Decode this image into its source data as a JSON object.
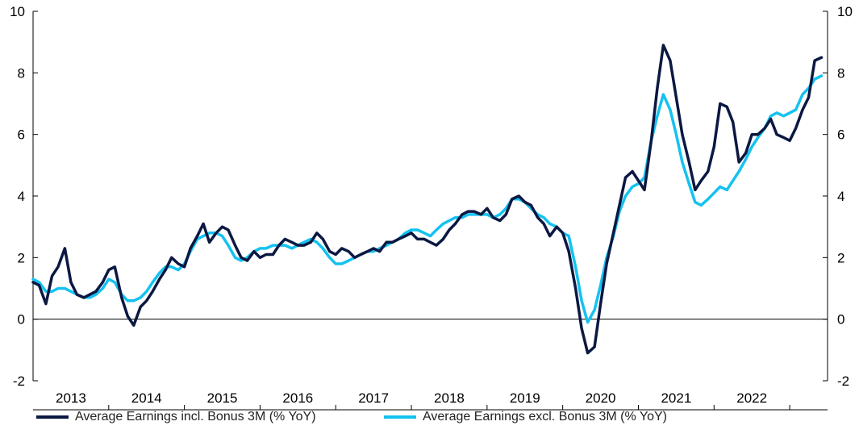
{
  "chart_data": {
    "type": "line",
    "title": "",
    "xlabel": "",
    "ylabel": "",
    "ylim": [
      -2,
      10
    ],
    "y_ticks": [
      -2,
      0,
      2,
      4,
      6,
      8,
      10
    ],
    "y_tick_labels": [
      "-2",
      "0",
      "2",
      "4",
      "6",
      "8",
      "10"
    ],
    "x_range": [
      2012.5,
      2023.0
    ],
    "year_labels": [
      {
        "year": 2013,
        "label": "2013"
      },
      {
        "year": 2014,
        "label": "2014"
      },
      {
        "year": 2015,
        "label": "2015"
      },
      {
        "year": 2016,
        "label": "2016"
      },
      {
        "year": 2017,
        "label": "2017"
      },
      {
        "year": 2018,
        "label": "2018"
      },
      {
        "year": 2019,
        "label": "2019"
      },
      {
        "year": 2020,
        "label": "2020"
      },
      {
        "year": 2021,
        "label": "2021"
      },
      {
        "year": 2022,
        "label": "2022"
      }
    ],
    "legend_position": "bottom",
    "grid": false,
    "series": [
      {
        "name": "Average Earnings incl. Bonus 3M (% YoY)",
        "color": "#0b1842",
        "points": [
          [
            2012.5,
            1.2
          ],
          [
            2012.58,
            1.1
          ],
          [
            2012.67,
            0.5
          ],
          [
            2012.75,
            1.4
          ],
          [
            2012.83,
            1.7
          ],
          [
            2012.92,
            2.3
          ],
          [
            2013.0,
            1.2
          ],
          [
            2013.08,
            0.8
          ],
          [
            2013.17,
            0.7
          ],
          [
            2013.25,
            0.8
          ],
          [
            2013.33,
            0.9
          ],
          [
            2013.42,
            1.2
          ],
          [
            2013.5,
            1.6
          ],
          [
            2013.58,
            1.7
          ],
          [
            2013.67,
            0.7
          ],
          [
            2013.75,
            0.1
          ],
          [
            2013.83,
            -0.2
          ],
          [
            2013.92,
            0.4
          ],
          [
            2014.0,
            0.6
          ],
          [
            2014.08,
            0.9
          ],
          [
            2014.17,
            1.3
          ],
          [
            2014.25,
            1.6
          ],
          [
            2014.33,
            2.0
          ],
          [
            2014.42,
            1.8
          ],
          [
            2014.5,
            1.7
          ],
          [
            2014.58,
            2.3
          ],
          [
            2014.67,
            2.7
          ],
          [
            2014.75,
            3.1
          ],
          [
            2014.83,
            2.5
          ],
          [
            2014.92,
            2.8
          ],
          [
            2015.0,
            3.0
          ],
          [
            2015.08,
            2.9
          ],
          [
            2015.17,
            2.4
          ],
          [
            2015.25,
            2.0
          ],
          [
            2015.33,
            1.9
          ],
          [
            2015.42,
            2.2
          ],
          [
            2015.5,
            2.0
          ],
          [
            2015.58,
            2.1
          ],
          [
            2015.67,
            2.1
          ],
          [
            2015.75,
            2.4
          ],
          [
            2015.83,
            2.6
          ],
          [
            2015.92,
            2.5
          ],
          [
            2016.0,
            2.4
          ],
          [
            2016.08,
            2.4
          ],
          [
            2016.17,
            2.5
          ],
          [
            2016.25,
            2.8
          ],
          [
            2016.33,
            2.6
          ],
          [
            2016.42,
            2.2
          ],
          [
            2016.5,
            2.1
          ],
          [
            2016.58,
            2.3
          ],
          [
            2016.67,
            2.2
          ],
          [
            2016.75,
            2.0
          ],
          [
            2016.83,
            2.1
          ],
          [
            2016.92,
            2.2
          ],
          [
            2017.0,
            2.3
          ],
          [
            2017.08,
            2.2
          ],
          [
            2017.17,
            2.5
          ],
          [
            2017.25,
            2.5
          ],
          [
            2017.33,
            2.6
          ],
          [
            2017.42,
            2.7
          ],
          [
            2017.5,
            2.8
          ],
          [
            2017.58,
            2.6
          ],
          [
            2017.67,
            2.6
          ],
          [
            2017.75,
            2.5
          ],
          [
            2017.83,
            2.4
          ],
          [
            2017.92,
            2.6
          ],
          [
            2018.0,
            2.9
          ],
          [
            2018.08,
            3.1
          ],
          [
            2018.17,
            3.4
          ],
          [
            2018.25,
            3.5
          ],
          [
            2018.33,
            3.5
          ],
          [
            2018.42,
            3.4
          ],
          [
            2018.5,
            3.6
          ],
          [
            2018.58,
            3.3
          ],
          [
            2018.67,
            3.2
          ],
          [
            2018.75,
            3.4
          ],
          [
            2018.83,
            3.9
          ],
          [
            2018.92,
            4.0
          ],
          [
            2019.0,
            3.8
          ],
          [
            2019.08,
            3.7
          ],
          [
            2019.17,
            3.3
          ],
          [
            2019.25,
            3.1
          ],
          [
            2019.33,
            2.7
          ],
          [
            2019.42,
            3.0
          ],
          [
            2019.5,
            2.8
          ],
          [
            2019.58,
            2.2
          ],
          [
            2019.67,
            1.0
          ],
          [
            2019.75,
            -0.3
          ],
          [
            2019.83,
            -1.1
          ],
          [
            2019.92,
            -0.9
          ],
          [
            2020.0,
            0.5
          ],
          [
            2020.08,
            1.8
          ],
          [
            2020.17,
            2.8
          ],
          [
            2020.25,
            3.7
          ],
          [
            2020.33,
            4.6
          ],
          [
            2020.42,
            4.8
          ],
          [
            2020.5,
            4.5
          ],
          [
            2020.58,
            4.2
          ],
          [
            2020.67,
            5.8
          ],
          [
            2020.75,
            7.5
          ],
          [
            2020.83,
            8.9
          ],
          [
            2020.92,
            8.4
          ],
          [
            2021.0,
            7.2
          ],
          [
            2021.08,
            6.0
          ],
          [
            2021.17,
            5.1
          ],
          [
            2021.25,
            4.2
          ],
          [
            2021.33,
            4.5
          ],
          [
            2021.42,
            4.8
          ],
          [
            2021.5,
            5.6
          ],
          [
            2021.58,
            7.0
          ],
          [
            2021.67,
            6.9
          ],
          [
            2021.75,
            6.4
          ],
          [
            2021.83,
            5.1
          ],
          [
            2021.92,
            5.4
          ],
          [
            2022.0,
            6.0
          ],
          [
            2022.08,
            6.0
          ],
          [
            2022.17,
            6.2
          ],
          [
            2022.25,
            6.5
          ],
          [
            2022.33,
            6.0
          ],
          [
            2022.42,
            5.9
          ],
          [
            2022.5,
            5.8
          ],
          [
            2022.58,
            6.2
          ],
          [
            2022.67,
            6.8
          ],
          [
            2022.75,
            7.2
          ],
          [
            2022.83,
            8.4
          ],
          [
            2022.92,
            8.5
          ]
        ]
      },
      {
        "name": "Average Earnings excl. Bonus 3M (% YoY)",
        "color": "#14c2f0",
        "points": [
          [
            2012.5,
            1.3
          ],
          [
            2012.58,
            1.2
          ],
          [
            2012.67,
            0.9
          ],
          [
            2012.75,
            0.9
          ],
          [
            2012.83,
            1.0
          ],
          [
            2012.92,
            1.0
          ],
          [
            2013.0,
            0.9
          ],
          [
            2013.08,
            0.8
          ],
          [
            2013.17,
            0.7
          ],
          [
            2013.25,
            0.7
          ],
          [
            2013.33,
            0.8
          ],
          [
            2013.42,
            1.0
          ],
          [
            2013.5,
            1.3
          ],
          [
            2013.58,
            1.2
          ],
          [
            2013.67,
            0.8
          ],
          [
            2013.75,
            0.6
          ],
          [
            2013.83,
            0.6
          ],
          [
            2013.92,
            0.7
          ],
          [
            2014.0,
            0.9
          ],
          [
            2014.08,
            1.2
          ],
          [
            2014.17,
            1.5
          ],
          [
            2014.25,
            1.7
          ],
          [
            2014.33,
            1.7
          ],
          [
            2014.42,
            1.6
          ],
          [
            2014.5,
            1.8
          ],
          [
            2014.58,
            2.2
          ],
          [
            2014.67,
            2.6
          ],
          [
            2014.75,
            2.7
          ],
          [
            2014.83,
            2.8
          ],
          [
            2014.92,
            2.8
          ],
          [
            2015.0,
            2.7
          ],
          [
            2015.08,
            2.4
          ],
          [
            2015.17,
            2.0
          ],
          [
            2015.25,
            1.9
          ],
          [
            2015.33,
            2.0
          ],
          [
            2015.42,
            2.2
          ],
          [
            2015.5,
            2.3
          ],
          [
            2015.58,
            2.3
          ],
          [
            2015.67,
            2.4
          ],
          [
            2015.75,
            2.4
          ],
          [
            2015.83,
            2.4
          ],
          [
            2015.92,
            2.3
          ],
          [
            2016.0,
            2.4
          ],
          [
            2016.08,
            2.5
          ],
          [
            2016.17,
            2.6
          ],
          [
            2016.25,
            2.5
          ],
          [
            2016.33,
            2.3
          ],
          [
            2016.42,
            2.0
          ],
          [
            2016.5,
            1.8
          ],
          [
            2016.58,
            1.8
          ],
          [
            2016.67,
            1.9
          ],
          [
            2016.75,
            2.0
          ],
          [
            2016.83,
            2.1
          ],
          [
            2016.92,
            2.2
          ],
          [
            2017.0,
            2.2
          ],
          [
            2017.08,
            2.3
          ],
          [
            2017.17,
            2.4
          ],
          [
            2017.25,
            2.5
          ],
          [
            2017.33,
            2.6
          ],
          [
            2017.42,
            2.8
          ],
          [
            2017.5,
            2.9
          ],
          [
            2017.58,
            2.9
          ],
          [
            2017.67,
            2.8
          ],
          [
            2017.75,
            2.7
          ],
          [
            2017.83,
            2.9
          ],
          [
            2017.92,
            3.1
          ],
          [
            2018.0,
            3.2
          ],
          [
            2018.08,
            3.3
          ],
          [
            2018.17,
            3.3
          ],
          [
            2018.25,
            3.4
          ],
          [
            2018.33,
            3.4
          ],
          [
            2018.42,
            3.4
          ],
          [
            2018.5,
            3.4
          ],
          [
            2018.58,
            3.3
          ],
          [
            2018.67,
            3.4
          ],
          [
            2018.75,
            3.6
          ],
          [
            2018.83,
            3.9
          ],
          [
            2018.92,
            3.9
          ],
          [
            2019.0,
            3.8
          ],
          [
            2019.08,
            3.6
          ],
          [
            2019.17,
            3.4
          ],
          [
            2019.25,
            3.3
          ],
          [
            2019.33,
            3.1
          ],
          [
            2019.42,
            3.0
          ],
          [
            2019.5,
            2.8
          ],
          [
            2019.58,
            2.7
          ],
          [
            2019.67,
            1.7
          ],
          [
            2019.75,
            0.6
          ],
          [
            2019.83,
            -0.1
          ],
          [
            2019.92,
            0.3
          ],
          [
            2020.0,
            1.1
          ],
          [
            2020.08,
            2.0
          ],
          [
            2020.17,
            2.7
          ],
          [
            2020.25,
            3.5
          ],
          [
            2020.33,
            4.0
          ],
          [
            2020.42,
            4.3
          ],
          [
            2020.5,
            4.4
          ],
          [
            2020.58,
            4.6
          ],
          [
            2020.67,
            5.8
          ],
          [
            2020.75,
            6.6
          ],
          [
            2020.83,
            7.3
          ],
          [
            2020.92,
            6.8
          ],
          [
            2021.0,
            6.0
          ],
          [
            2021.08,
            5.1
          ],
          [
            2021.17,
            4.4
          ],
          [
            2021.25,
            3.8
          ],
          [
            2021.33,
            3.7
          ],
          [
            2021.42,
            3.9
          ],
          [
            2021.5,
            4.1
          ],
          [
            2021.58,
            4.3
          ],
          [
            2021.67,
            4.2
          ],
          [
            2021.75,
            4.5
          ],
          [
            2021.83,
            4.8
          ],
          [
            2021.92,
            5.2
          ],
          [
            2022.0,
            5.6
          ],
          [
            2022.08,
            5.9
          ],
          [
            2022.17,
            6.2
          ],
          [
            2022.25,
            6.6
          ],
          [
            2022.33,
            6.7
          ],
          [
            2022.42,
            6.6
          ],
          [
            2022.5,
            6.7
          ],
          [
            2022.58,
            6.8
          ],
          [
            2022.67,
            7.3
          ],
          [
            2022.75,
            7.5
          ],
          [
            2022.83,
            7.8
          ],
          [
            2022.92,
            7.9
          ]
        ]
      }
    ]
  }
}
